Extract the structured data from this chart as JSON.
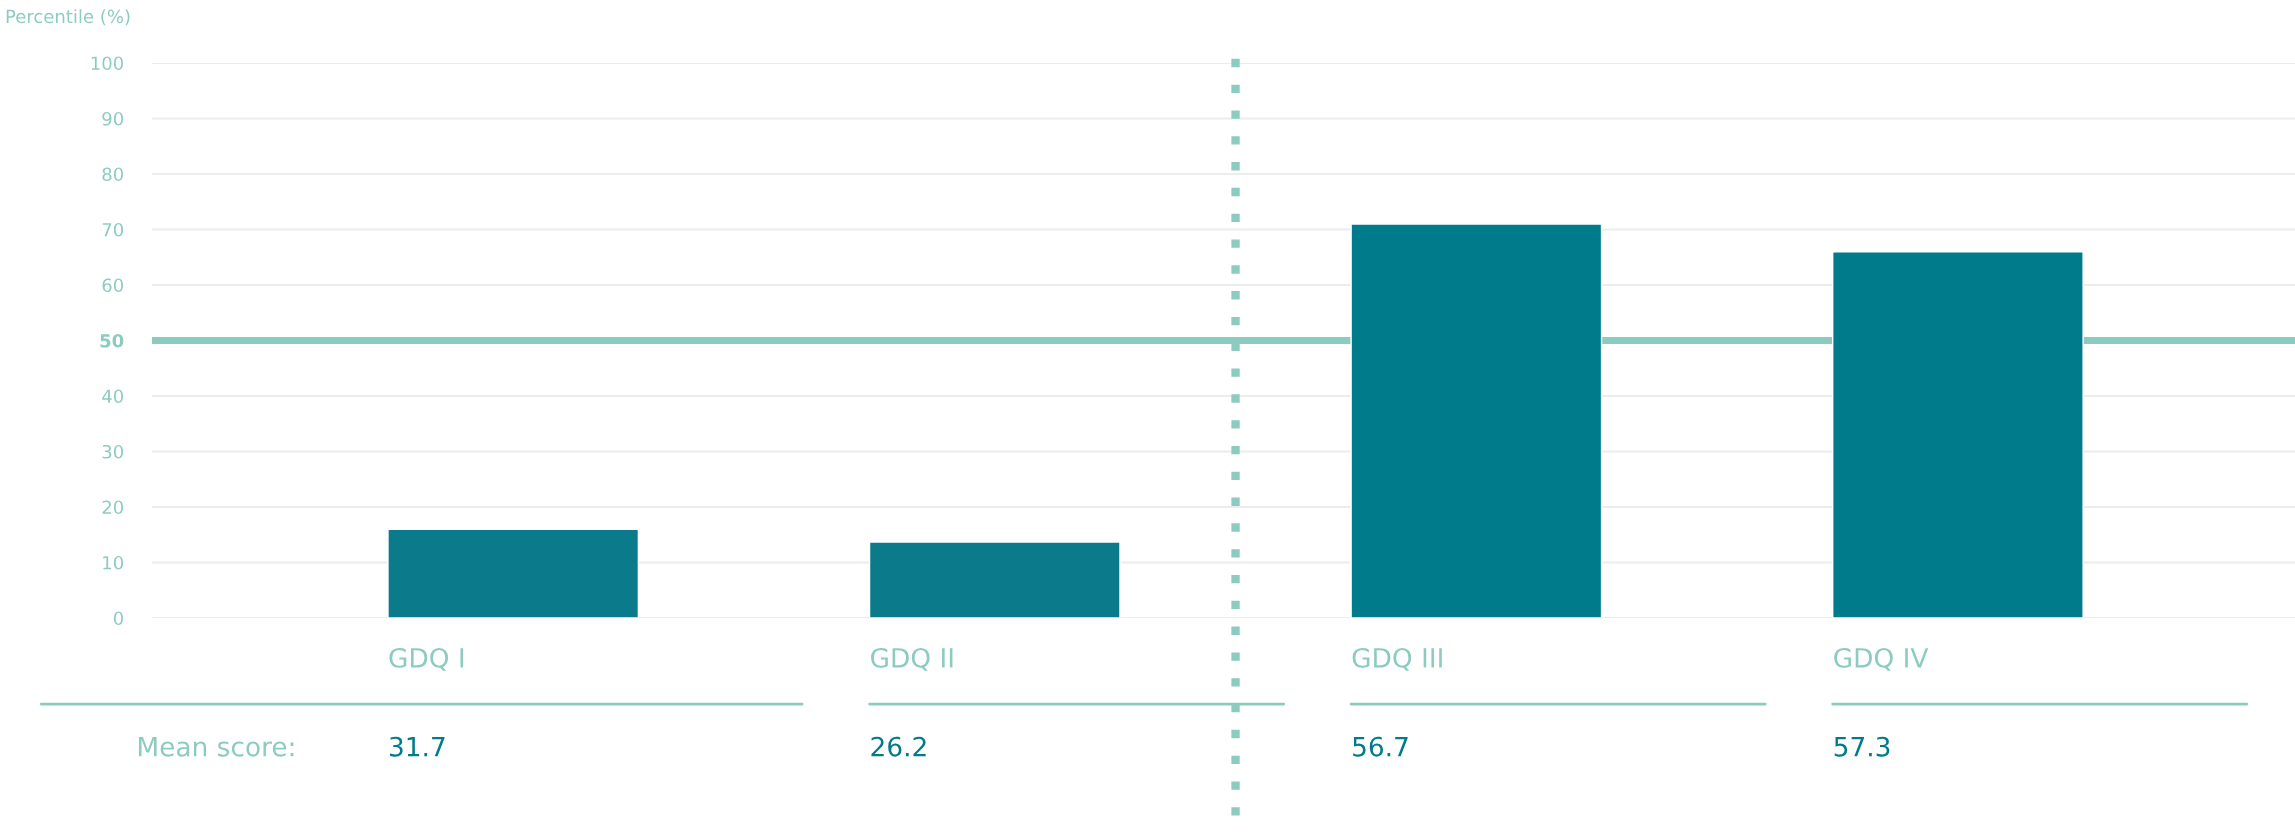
{
  "chart_data": {
    "type": "bar",
    "ylabel": "Percentile (%)",
    "categories": [
      "GDQ I",
      "GDQ II",
      "GDQ III",
      "GDQ IV"
    ],
    "values": [
      16,
      13.7,
      71,
      66
    ],
    "colors": [
      "#0b7a8a",
      "#0b7a8a",
      "#007b8c",
      "#007b8c"
    ],
    "ylim": [
      0,
      100
    ],
    "yticks": [
      0,
      10,
      20,
      30,
      40,
      50,
      60,
      70,
      80,
      90,
      100
    ],
    "grid": "y",
    "ref_lines": [
      {
        "axis": "y",
        "value": 50,
        "color": "#8ccbbf",
        "line_style": "solid"
      }
    ],
    "annotations": [
      "Mean score:",
      "31.7",
      "26.2",
      "56.7",
      "57.3"
    ]
  }
}
